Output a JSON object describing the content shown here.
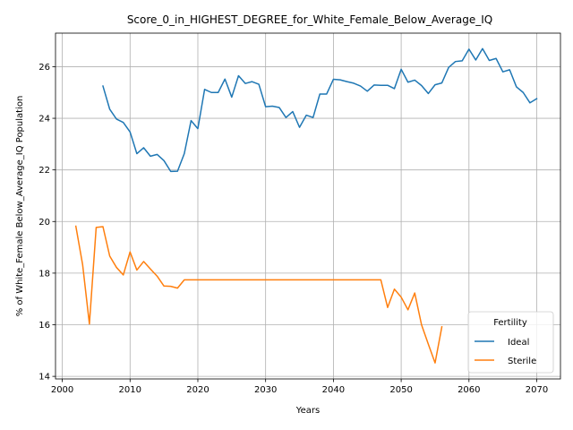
{
  "chart_data": {
    "type": "line",
    "title": "Score_0_in_HIGHEST_DEGREE_for_White_Female_Below_Average_IQ",
    "xlabel": "Years",
    "ylabel": "% of White_Female Below_Average_IQ Population",
    "xlim": [
      1999,
      2073.5
    ],
    "ylim": [
      13.9,
      27.3
    ],
    "xticks": [
      2000,
      2010,
      2020,
      2030,
      2040,
      2050,
      2060,
      2070
    ],
    "yticks": [
      14,
      16,
      18,
      20,
      22,
      24,
      26
    ],
    "grid": true,
    "legend": {
      "title": "Fertility",
      "location": "lower-right"
    },
    "series": [
      {
        "name": "Ideal",
        "color": "#1f77b4",
        "x": [
          2006,
          2007,
          2008,
          2009,
          2010,
          2011,
          2012,
          2013,
          2014,
          2015,
          2016,
          2017,
          2018,
          2019,
          2020,
          2021,
          2022,
          2023,
          2024,
          2025,
          2026,
          2027,
          2028,
          2029,
          2030,
          2031,
          2032,
          2033,
          2034,
          2035,
          2036,
          2037,
          2038,
          2039,
          2040,
          2041,
          2042,
          2043,
          2044,
          2045,
          2046,
          2047,
          2048,
          2049,
          2050,
          2051,
          2052,
          2053,
          2054,
          2055,
          2056,
          2057,
          2058,
          2059,
          2060,
          2061,
          2062,
          2063,
          2064,
          2065,
          2066,
          2067,
          2068,
          2069,
          2070
        ],
        "values": [
          25.25,
          24.35,
          23.97,
          23.84,
          23.47,
          22.63,
          22.86,
          22.53,
          22.6,
          22.36,
          21.94,
          21.95,
          22.63,
          23.91,
          23.6,
          25.12,
          25.0,
          25.0,
          25.52,
          24.82,
          25.65,
          25.35,
          25.42,
          25.32,
          24.45,
          24.47,
          24.42,
          24.03,
          24.26,
          23.65,
          24.12,
          24.03,
          24.94,
          24.94,
          25.51,
          25.49,
          25.42,
          25.36,
          25.25,
          25.05,
          25.29,
          25.28,
          25.28,
          25.15,
          25.9,
          25.4,
          25.48,
          25.27,
          24.96,
          25.3,
          25.37,
          25.97,
          26.2,
          26.23,
          26.68,
          26.26,
          26.7,
          26.24,
          26.32,
          25.8,
          25.88,
          25.22,
          25.0,
          24.6,
          24.76
        ]
      },
      {
        "name": "Sterile",
        "color": "#ff7f0e",
        "x": [
          2002,
          2003,
          2004,
          2005,
          2006,
          2007,
          2008,
          2009,
          2010,
          2011,
          2012,
          2013,
          2014,
          2015,
          2016,
          2017,
          2018,
          2019,
          2020,
          2021,
          2022,
          2023,
          2024,
          2025,
          2026,
          2027,
          2028,
          2029,
          2030,
          2031,
          2032,
          2033,
          2034,
          2035,
          2036,
          2037,
          2038,
          2039,
          2040,
          2041,
          2042,
          2043,
          2044,
          2045,
          2046,
          2047,
          2048,
          2049,
          2050,
          2051,
          2052,
          2053,
          2054,
          2055,
          2056
        ],
        "values": [
          19.82,
          18.33,
          16.03,
          19.77,
          19.8,
          18.66,
          18.22,
          17.93,
          18.82,
          18.12,
          18.45,
          18.16,
          17.88,
          17.5,
          17.49,
          17.42,
          17.74,
          17.74,
          17.74,
          17.74,
          17.74,
          17.74,
          17.74,
          17.74,
          17.74,
          17.74,
          17.74,
          17.74,
          17.74,
          17.74,
          17.74,
          17.74,
          17.74,
          17.74,
          17.74,
          17.74,
          17.74,
          17.74,
          17.74,
          17.74,
          17.74,
          17.74,
          17.74,
          17.74,
          17.74,
          17.74,
          16.67,
          17.38,
          17.07,
          16.58,
          17.23,
          16.0,
          15.25,
          14.52,
          15.92
        ]
      }
    ]
  }
}
